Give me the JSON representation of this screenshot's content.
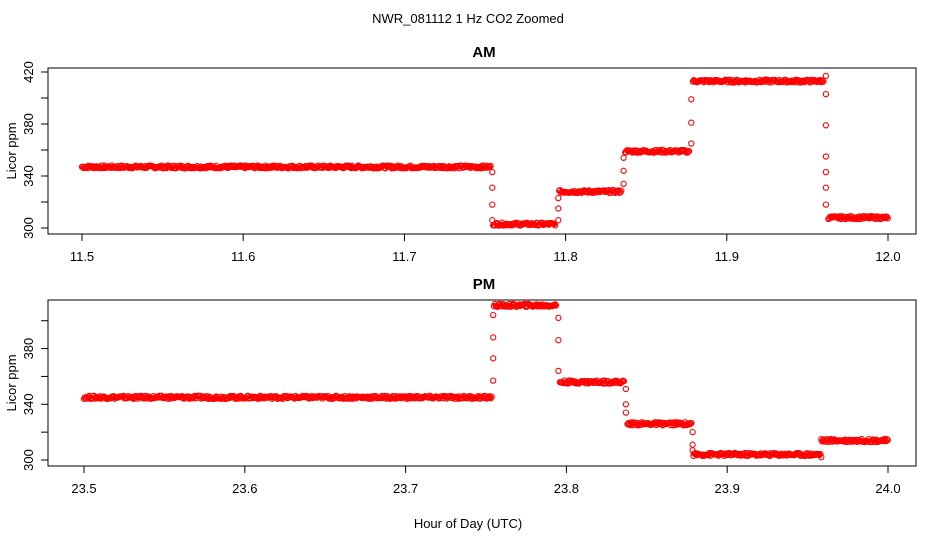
{
  "figure": {
    "title": "NWR_081112  1 Hz CO2 Zoomed",
    "xlabel": "Hour of Day (UTC)",
    "series_color": "#ff0000"
  },
  "chart_data": [
    {
      "type": "scatter",
      "title": "AM",
      "xlabel": "",
      "ylabel": "Licor ppm",
      "xlim": [
        11.5,
        12.0
      ],
      "ylim": [
        300,
        420
      ],
      "xticks": [
        "11.5",
        "11.6",
        "11.7",
        "11.8",
        "11.9",
        "12.0"
      ],
      "yticks": [
        "300",
        "340",
        "380",
        "420"
      ],
      "ytick_minor": [
        320,
        360,
        400
      ],
      "grid": false,
      "segments": [
        {
          "x0": 11.5,
          "x1": 11.754,
          "y": 347
        },
        {
          "x0": 11.755,
          "x1": 11.794,
          "y": 303
        },
        {
          "x0": 11.796,
          "x1": 11.835,
          "y": 328
        },
        {
          "x0": 11.837,
          "x1": 11.877,
          "y": 359
        },
        {
          "x0": 11.879,
          "x1": 11.96,
          "y": 413
        },
        {
          "x0": 11.963,
          "x1": 12.0,
          "y": 308
        }
      ],
      "transitions": [
        {
          "x": 11.7545,
          "y": [
            343,
            331,
            318,
            306
          ]
        },
        {
          "x": 11.7955,
          "y": [
            306,
            315,
            323
          ]
        },
        {
          "x": 11.836,
          "y": [
            334,
            344,
            354
          ]
        },
        {
          "x": 11.878,
          "y": [
            365,
            381,
            399
          ]
        },
        {
          "x": 11.9615,
          "y": [
            417,
            403,
            379,
            355,
            343,
            331,
            318
          ]
        }
      ]
    },
    {
      "type": "scatter",
      "title": "PM",
      "xlabel": "",
      "ylabel": "Licor ppm",
      "xlim": [
        23.5,
        24.0
      ],
      "ylim": [
        300,
        412
      ],
      "xticks": [
        "23.5",
        "23.6",
        "23.7",
        "23.8",
        "23.9",
        "24.0"
      ],
      "yticks": [
        "300",
        "340",
        "380"
      ],
      "ytick_minor": [
        320,
        360,
        400
      ],
      "grid": false,
      "segments": [
        {
          "x0": 23.5,
          "x1": 23.754,
          "y": 345
        },
        {
          "x0": 23.755,
          "x1": 23.794,
          "y": 411
        },
        {
          "x0": 23.796,
          "x1": 23.836,
          "y": 356
        },
        {
          "x0": 23.838,
          "x1": 23.878,
          "y": 326
        },
        {
          "x0": 23.879,
          "x1": 23.958,
          "y": 304
        },
        {
          "x0": 23.959,
          "x1": 24.0,
          "y": 314
        }
      ],
      "transitions": [
        {
          "x": 23.7545,
          "y": [
            357,
            373,
            388,
            404
          ]
        },
        {
          "x": 23.795,
          "y": [
            402,
            386,
            364
          ]
        },
        {
          "x": 23.837,
          "y": [
            351,
            340,
            334
          ]
        },
        {
          "x": 23.8785,
          "y": [
            320,
            311,
            307
          ]
        },
        {
          "x": 23.9585,
          "y": [
            302,
            315
          ]
        }
      ]
    }
  ]
}
